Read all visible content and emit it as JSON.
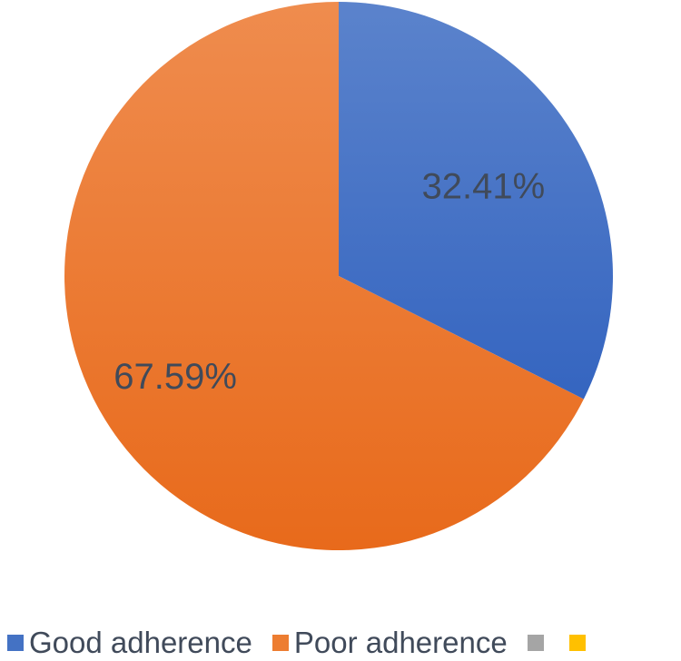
{
  "chart_data": {
    "type": "pie",
    "title": "",
    "categories": [
      "Good adherence",
      "Poor adherence",
      "",
      ""
    ],
    "values": [
      32.41,
      67.59,
      0,
      0
    ],
    "labels": [
      "32.41%",
      "67.59%"
    ],
    "colors": [
      "#4472c4",
      "#ed7d31",
      "#a5a5a5",
      "#ffc000"
    ],
    "start_angle": "12 o'clock",
    "direction": "clockwise",
    "legend": "bottom"
  }
}
